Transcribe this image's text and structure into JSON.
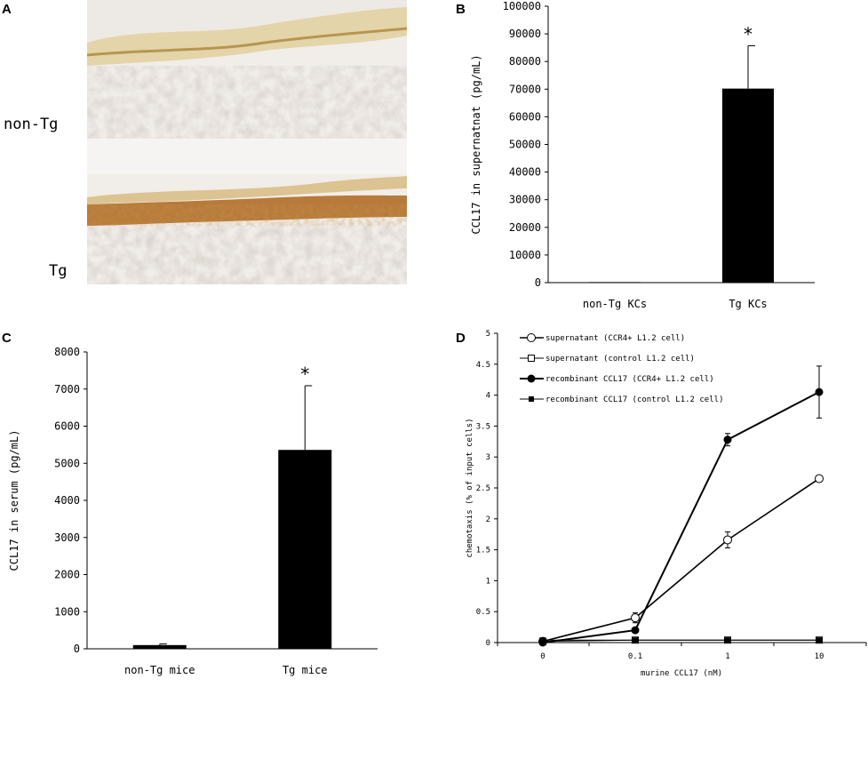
{
  "panels": {
    "A": {
      "letter": "A",
      "rows": [
        "non-Tg",
        "Tg"
      ]
    },
    "B": {
      "letter": "B",
      "chart_data": {
        "type": "bar",
        "categories": [
          "non-Tg KCs",
          "Tg KCs"
        ],
        "values": [
          200,
          70200
        ],
        "errors": [
          0,
          15500
        ],
        "significance": [
          "",
          "*"
        ],
        "ylabel": "CCL17 in supernatnat (pg/mL)",
        "xlabel": "",
        "ylim": [
          0,
          100000
        ],
        "yticks": [
          0,
          10000,
          20000,
          30000,
          40000,
          50000,
          60000,
          70000,
          80000,
          90000,
          100000
        ]
      }
    },
    "C": {
      "letter": "C",
      "chart_data": {
        "type": "bar",
        "categories": [
          "non-Tg mice",
          "Tg mice"
        ],
        "values": [
          100,
          5360
        ],
        "errors": [
          30,
          1730
        ],
        "significance": [
          "",
          "*"
        ],
        "ylabel": "CCL17 in serum (pg/mL)",
        "xlabel": "",
        "ylim": [
          0,
          8000
        ],
        "yticks": [
          0,
          1000,
          2000,
          3000,
          4000,
          5000,
          6000,
          7000,
          8000
        ]
      }
    },
    "D": {
      "letter": "D",
      "chart_data": {
        "type": "line",
        "x": [
          "0",
          "0.1",
          "1",
          "10"
        ],
        "series": [
          {
            "name": "supernatant (CCR4+ L1.2 cell)",
            "marker": "open-circle",
            "values": [
              0.02,
              0.4,
              1.66,
              2.65
            ],
            "errors": [
              0.02,
              0.08,
              0.13,
              0.05
            ]
          },
          {
            "name": "supernatant (control L1.2 cell)",
            "marker": "open-square",
            "values": [
              0.02,
              0.04,
              0.04,
              0.04
            ],
            "errors": [
              0,
              0,
              0,
              0
            ]
          },
          {
            "name": "recombinant CCL17 (CCR4+ L1.2 cell)",
            "marker": "filled-circle",
            "values": [
              0.0,
              0.2,
              3.28,
              4.05
            ],
            "errors": [
              0.01,
              0.02,
              0.1,
              0.42
            ]
          },
          {
            "name": "recombinant CCL17 (control L1.2 cell)",
            "marker": "filled-square",
            "values": [
              0.04,
              0.04,
              0.04,
              0.04
            ],
            "errors": [
              0,
              0,
              0,
              0
            ]
          }
        ],
        "xlabel": "murine CCL17 (nM)",
        "ylabel": "chemotaxis (% of input cells)",
        "ylim": [
          0,
          5
        ],
        "yticks": [
          "0",
          "0.5",
          "1",
          "1.5",
          "2",
          "2.5",
          "3",
          "3.5",
          "4",
          "4.5",
          "5"
        ],
        "legend": "top-left"
      }
    }
  }
}
